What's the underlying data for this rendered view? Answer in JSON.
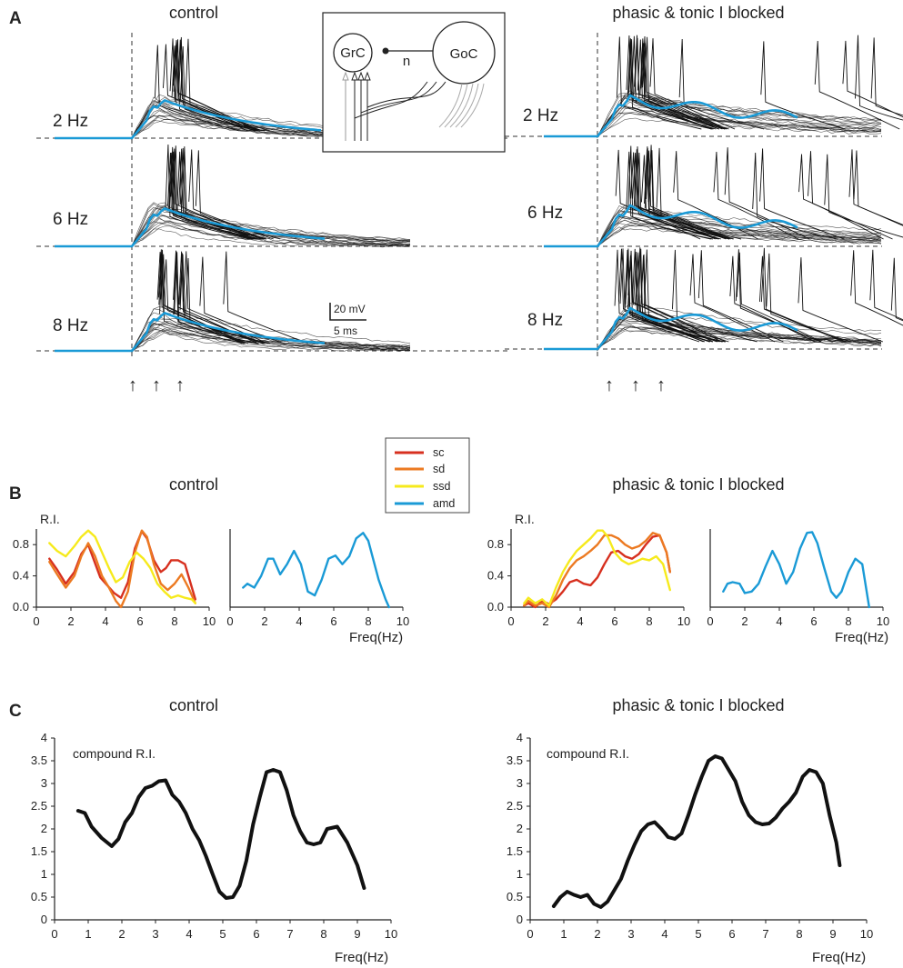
{
  "panels": {
    "a": "A",
    "b": "B",
    "c": "C"
  },
  "conditions": {
    "control": "control",
    "blocked": "phasic & tonic I blocked"
  },
  "panel_a": {
    "rates": [
      "2 Hz",
      "6 Hz",
      "8 Hz"
    ],
    "scale_bar": {
      "v": "20 mV",
      "t": "5 ms"
    },
    "stim_marker": "↑",
    "inset": {
      "grc": "GrC",
      "goc": "GoC",
      "n": "n"
    },
    "colors": {
      "traces": "#111111",
      "mean": "#1a9ad6"
    }
  },
  "legend": [
    {
      "name": "sc",
      "color": "#d7301f"
    },
    {
      "name": "sd",
      "color": "#ec7a22"
    },
    {
      "name": "ssd",
      "color": "#f6ea1c"
    },
    {
      "name": "amd",
      "color": "#1a9ad6"
    }
  ],
  "chart_data": [
    {
      "id": "B-control-left",
      "type": "line",
      "ylabel": "R.I.",
      "xlabel": "",
      "xlim": [
        0,
        10
      ],
      "ylim": [
        0,
        1
      ],
      "xticks": [
        "0",
        "2",
        "4",
        "6",
        "8",
        "10"
      ],
      "yticks": [
        "0.0",
        "0.4",
        "0.8"
      ],
      "series": [
        {
          "name": "sc",
          "color": "#d7301f",
          "x": [
            0.75,
            1.2,
            1.7,
            2.2,
            2.6,
            3.0,
            3.3,
            3.7,
            4.1,
            4.5,
            4.9,
            5.3,
            5.7,
            6.1,
            6.4,
            6.8,
            7.2,
            7.5,
            7.8,
            8.2,
            8.6,
            9.0,
            9.2
          ],
          "y": [
            0.62,
            0.48,
            0.3,
            0.45,
            0.68,
            0.8,
            0.62,
            0.38,
            0.28,
            0.18,
            0.12,
            0.32,
            0.75,
            0.97,
            0.88,
            0.6,
            0.45,
            0.5,
            0.6,
            0.6,
            0.55,
            0.25,
            0.1
          ]
        },
        {
          "name": "sd",
          "color": "#ec7a22",
          "x": [
            0.75,
            1.2,
            1.7,
            2.2,
            2.6,
            3.0,
            3.4,
            3.8,
            4.2,
            4.6,
            4.9,
            5.3,
            5.7,
            6.1,
            6.4,
            6.8,
            7.2,
            7.6,
            8.0,
            8.4,
            8.8,
            9.2
          ],
          "y": [
            0.58,
            0.42,
            0.25,
            0.4,
            0.65,
            0.82,
            0.65,
            0.4,
            0.25,
            0.08,
            0.0,
            0.2,
            0.7,
            0.98,
            0.9,
            0.55,
            0.3,
            0.22,
            0.3,
            0.42,
            0.25,
            0.05
          ]
        },
        {
          "name": "ssd",
          "color": "#f6ea1c",
          "x": [
            0.75,
            1.2,
            1.7,
            2.2,
            2.6,
            3.0,
            3.4,
            3.8,
            4.2,
            4.6,
            5.0,
            5.4,
            5.8,
            6.2,
            6.6,
            7.0,
            7.4,
            7.8,
            8.2,
            8.6,
            9.0,
            9.2
          ],
          "y": [
            0.82,
            0.72,
            0.65,
            0.78,
            0.9,
            0.98,
            0.9,
            0.7,
            0.5,
            0.32,
            0.38,
            0.58,
            0.7,
            0.62,
            0.5,
            0.3,
            0.2,
            0.12,
            0.15,
            0.12,
            0.1,
            0.05
          ]
        }
      ]
    },
    {
      "id": "B-control-right",
      "type": "line",
      "xlabel": "Freq(Hz)",
      "xlim": [
        0,
        10
      ],
      "ylim": [
        0,
        1
      ],
      "xticks": [
        "0",
        "2",
        "4",
        "6",
        "8",
        "10"
      ],
      "yticks": [],
      "series": [
        {
          "name": "amd",
          "color": "#1a9ad6",
          "x": [
            0.75,
            1.0,
            1.4,
            1.8,
            2.2,
            2.5,
            2.9,
            3.3,
            3.7,
            4.1,
            4.5,
            4.9,
            5.3,
            5.7,
            6.1,
            6.5,
            6.9,
            7.3,
            7.7,
            8.0,
            8.3,
            8.6,
            9.0,
            9.2
          ],
          "y": [
            0.25,
            0.3,
            0.25,
            0.4,
            0.62,
            0.62,
            0.42,
            0.55,
            0.72,
            0.55,
            0.2,
            0.15,
            0.35,
            0.62,
            0.66,
            0.55,
            0.65,
            0.88,
            0.95,
            0.85,
            0.6,
            0.35,
            0.1,
            0.0
          ]
        }
      ]
    },
    {
      "id": "B-blocked-left",
      "type": "line",
      "ylabel": "R.I.",
      "xlabel": "",
      "xlim": [
        0,
        10
      ],
      "ylim": [
        0,
        1
      ],
      "xticks": [
        "0",
        "2",
        "4",
        "6",
        "8",
        "10"
      ],
      "yticks": [
        "0.0",
        "0.4",
        "0.8"
      ],
      "series": [
        {
          "name": "sc",
          "color": "#d7301f",
          "x": [
            0.75,
            1.0,
            1.4,
            1.8,
            2.2,
            2.6,
            3.0,
            3.4,
            3.8,
            4.2,
            4.6,
            5.0,
            5.4,
            5.8,
            6.2,
            6.6,
            7.0,
            7.4,
            7.8,
            8.2,
            8.6,
            9.0,
            9.2
          ],
          "y": [
            0.02,
            0.05,
            0.0,
            0.08,
            0.04,
            0.1,
            0.2,
            0.32,
            0.35,
            0.3,
            0.28,
            0.38,
            0.55,
            0.7,
            0.72,
            0.65,
            0.62,
            0.68,
            0.8,
            0.9,
            0.92,
            0.7,
            0.45
          ]
        },
        {
          "name": "sd",
          "color": "#ec7a22",
          "x": [
            0.75,
            1.0,
            1.4,
            1.8,
            2.2,
            2.6,
            3.0,
            3.4,
            3.8,
            4.2,
            4.6,
            5.0,
            5.4,
            5.8,
            6.2,
            6.6,
            7.0,
            7.4,
            7.8,
            8.2,
            8.6,
            9.0,
            9.2
          ],
          "y": [
            0.02,
            0.08,
            0.02,
            0.05,
            0.0,
            0.15,
            0.35,
            0.5,
            0.6,
            0.65,
            0.72,
            0.8,
            0.92,
            0.92,
            0.88,
            0.8,
            0.75,
            0.78,
            0.85,
            0.95,
            0.92,
            0.7,
            0.45
          ]
        },
        {
          "name": "ssd",
          "color": "#f6ea1c",
          "x": [
            0.75,
            1.0,
            1.4,
            1.8,
            2.2,
            2.6,
            3.0,
            3.4,
            3.8,
            4.2,
            4.6,
            5.0,
            5.3,
            5.6,
            6.0,
            6.4,
            6.8,
            7.2,
            7.6,
            8.0,
            8.4,
            8.8,
            9.2
          ],
          "y": [
            0.05,
            0.12,
            0.05,
            0.1,
            0.02,
            0.25,
            0.45,
            0.6,
            0.72,
            0.8,
            0.88,
            0.98,
            0.98,
            0.9,
            0.7,
            0.6,
            0.55,
            0.58,
            0.62,
            0.6,
            0.65,
            0.55,
            0.22
          ]
        }
      ]
    },
    {
      "id": "B-blocked-right",
      "type": "line",
      "xlabel": "Freq(Hz)",
      "xlim": [
        0,
        10
      ],
      "ylim": [
        0,
        1
      ],
      "xticks": [
        "0",
        "2",
        "4",
        "6",
        "8",
        "10"
      ],
      "yticks": [],
      "series": [
        {
          "name": "amd",
          "color": "#1a9ad6",
          "x": [
            0.75,
            1.0,
            1.3,
            1.7,
            2.0,
            2.4,
            2.8,
            3.2,
            3.6,
            4.0,
            4.4,
            4.8,
            5.2,
            5.6,
            5.9,
            6.2,
            6.6,
            7.0,
            7.3,
            7.6,
            8.0,
            8.4,
            8.8,
            9.2
          ],
          "y": [
            0.2,
            0.3,
            0.32,
            0.3,
            0.18,
            0.2,
            0.3,
            0.52,
            0.72,
            0.55,
            0.3,
            0.45,
            0.75,
            0.95,
            0.96,
            0.82,
            0.5,
            0.2,
            0.12,
            0.2,
            0.45,
            0.62,
            0.55,
            0.0
          ]
        }
      ]
    },
    {
      "id": "C-control",
      "type": "line",
      "title": "compound R.I.",
      "xlabel": "Freq(Hz)",
      "ylabel": "",
      "xlim": [
        0,
        10
      ],
      "ylim": [
        0,
        4
      ],
      "xticks": [
        "0",
        "1",
        "2",
        "3",
        "4",
        "5",
        "6",
        "7",
        "8",
        "9",
        "10"
      ],
      "yticks": [
        "0",
        "0.5",
        "1",
        "1.5",
        "2",
        "2.5",
        "3",
        "3.5",
        "4"
      ],
      "series": [
        {
          "name": "compound",
          "color": "#111111",
          "x": [
            0.7,
            0.9,
            1.1,
            1.4,
            1.7,
            1.9,
            2.1,
            2.3,
            2.5,
            2.7,
            2.9,
            3.1,
            3.3,
            3.5,
            3.7,
            3.9,
            4.1,
            4.3,
            4.5,
            4.7,
            4.9,
            5.1,
            5.3,
            5.5,
            5.7,
            5.9,
            6.1,
            6.3,
            6.5,
            6.7,
            6.9,
            7.1,
            7.3,
            7.5,
            7.7,
            7.9,
            8.1,
            8.4,
            8.7,
            9.0,
            9.2
          ],
          "y": [
            2.4,
            2.35,
            2.05,
            1.8,
            1.62,
            1.78,
            2.15,
            2.35,
            2.7,
            2.9,
            2.95,
            3.05,
            3.07,
            2.75,
            2.6,
            2.35,
            2.0,
            1.75,
            1.4,
            1.0,
            0.62,
            0.48,
            0.5,
            0.75,
            1.3,
            2.1,
            2.7,
            3.25,
            3.3,
            3.25,
            2.85,
            2.3,
            1.95,
            1.7,
            1.66,
            1.7,
            2.0,
            2.05,
            1.7,
            1.2,
            0.7
          ]
        }
      ]
    },
    {
      "id": "C-blocked",
      "type": "line",
      "title": "compound R.I.",
      "xlabel": "Freq(Hz)",
      "ylabel": "",
      "xlim": [
        0,
        10
      ],
      "ylim": [
        0,
        4
      ],
      "xticks": [
        "0",
        "1",
        "2",
        "3",
        "4",
        "5",
        "6",
        "7",
        "8",
        "9",
        "10"
      ],
      "yticks": [
        "0",
        "0.5",
        "1",
        "1.5",
        "2",
        "2.5",
        "3",
        "3.5",
        "4"
      ],
      "series": [
        {
          "name": "compound",
          "color": "#111111",
          "x": [
            0.7,
            0.9,
            1.1,
            1.3,
            1.5,
            1.7,
            1.9,
            2.1,
            2.3,
            2.5,
            2.7,
            2.9,
            3.1,
            3.3,
            3.5,
            3.7,
            3.9,
            4.1,
            4.3,
            4.5,
            4.7,
            4.9,
            5.1,
            5.3,
            5.5,
            5.7,
            5.9,
            6.1,
            6.3,
            6.5,
            6.7,
            6.9,
            7.1,
            7.3,
            7.5,
            7.7,
            7.9,
            8.1,
            8.3,
            8.5,
            8.7,
            8.9,
            9.1,
            9.2
          ],
          "y": [
            0.3,
            0.5,
            0.62,
            0.55,
            0.5,
            0.55,
            0.35,
            0.28,
            0.4,
            0.65,
            0.9,
            1.3,
            1.65,
            1.95,
            2.1,
            2.15,
            2.0,
            1.82,
            1.78,
            1.9,
            2.3,
            2.75,
            3.15,
            3.5,
            3.6,
            3.55,
            3.3,
            3.05,
            2.6,
            2.3,
            2.15,
            2.1,
            2.12,
            2.25,
            2.45,
            2.6,
            2.8,
            3.15,
            3.3,
            3.25,
            3.0,
            2.3,
            1.7,
            1.2
          ]
        }
      ]
    }
  ]
}
